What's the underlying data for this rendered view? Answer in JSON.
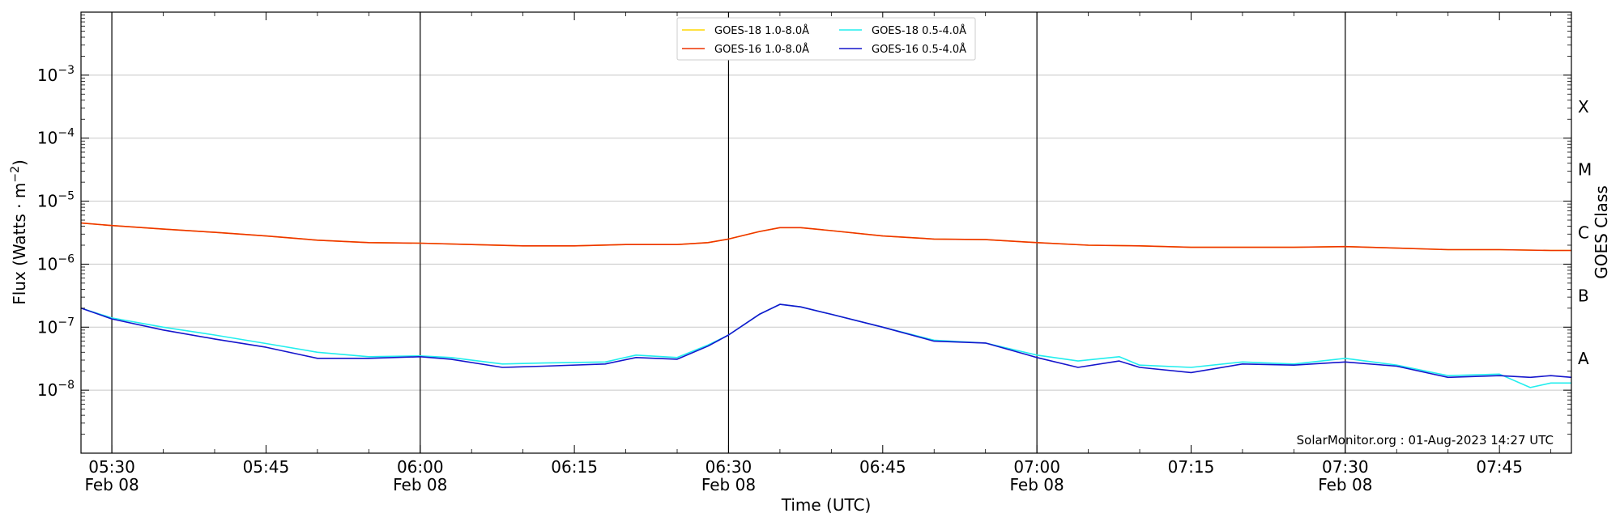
{
  "chart_data": {
    "type": "line",
    "title": "",
    "xlabel": "Time (UTC)",
    "ylabel": "Flux (Watts · m",
    "ylabel_sup": "−2",
    "ylabel_close": ")",
    "right_label": "GOES Class",
    "y_scale": "log",
    "ylim": [
      1e-09,
      0.01
    ],
    "xlim": [
      "05:27",
      "07:52"
    ],
    "grid": "horizontal",
    "legend_position": "top-center",
    "y_ticks": [
      {
        "exp": "-3",
        "value": 0.001
      },
      {
        "exp": "-4",
        "value": 0.0001
      },
      {
        "exp": "-5",
        "value": 1e-05
      },
      {
        "exp": "-6",
        "value": 1e-06
      },
      {
        "exp": "-7",
        "value": 1e-07
      },
      {
        "exp": "-8",
        "value": 1e-08
      }
    ],
    "x_ticks": [
      {
        "time": "05:30",
        "label": "05:30",
        "date": "Feb 08"
      },
      {
        "time": "05:45",
        "label": "05:45",
        "date": ""
      },
      {
        "time": "06:00",
        "label": "06:00",
        "date": "Feb 08"
      },
      {
        "time": "06:15",
        "label": "06:15",
        "date": ""
      },
      {
        "time": "06:30",
        "label": "06:30",
        "date": "Feb 08"
      },
      {
        "time": "06:45",
        "label": "06:45",
        "date": ""
      },
      {
        "time": "07:00",
        "label": "07:00",
        "date": "Feb 08"
      },
      {
        "time": "07:15",
        "label": "07:15",
        "date": ""
      },
      {
        "time": "07:30",
        "label": "07:30",
        "date": "Feb 08"
      },
      {
        "time": "07:45",
        "label": "07:45",
        "date": ""
      }
    ],
    "vlines": [
      "05:30",
      "06:00",
      "06:30",
      "07:00",
      "07:30"
    ],
    "goes_classes": [
      {
        "label": "X",
        "value": 0.000316
      },
      {
        "label": "M",
        "value": 3.16e-05
      },
      {
        "label": "C",
        "value": 3.16e-06
      },
      {
        "label": "B",
        "value": 3.16e-07
      },
      {
        "label": "A",
        "value": 3.16e-08
      }
    ],
    "series": [
      {
        "name": "GOES-18 1.0-8.0Å",
        "color": "#ffd700",
        "x": [
          "05:27",
          "05:30",
          "05:35",
          "05:40",
          "05:45",
          "05:50",
          "05:55",
          "06:00",
          "06:05",
          "06:10",
          "06:15",
          "06:20",
          "06:25",
          "06:28",
          "06:30",
          "06:33",
          "06:35",
          "06:37",
          "06:40",
          "06:45",
          "06:50",
          "06:55",
          "07:00",
          "07:05",
          "07:10",
          "07:15",
          "07:20",
          "07:25",
          "07:30",
          "07:35",
          "07:40",
          "07:45",
          "07:50",
          "07:52"
        ],
        "y": [
          4.5e-06,
          4.1e-06,
          3.6e-06,
          3.2e-06,
          2.8e-06,
          2.4e-06,
          2.2e-06,
          2.15e-06,
          2.05e-06,
          1.95e-06,
          1.95e-06,
          2.05e-06,
          2.05e-06,
          2.2e-06,
          2.5e-06,
          3.3e-06,
          3.8e-06,
          3.8e-06,
          3.4e-06,
          2.8e-06,
          2.5e-06,
          2.45e-06,
          2.2e-06,
          2e-06,
          1.95e-06,
          1.85e-06,
          1.85e-06,
          1.85e-06,
          1.9e-06,
          1.8e-06,
          1.7e-06,
          1.7e-06,
          1.65e-06,
          1.65e-06
        ]
      },
      {
        "name": "GOES-16 1.0-8.0Å",
        "color": "#ee3300",
        "x": [
          "05:27",
          "05:30",
          "05:35",
          "05:40",
          "05:45",
          "05:50",
          "05:55",
          "06:00",
          "06:05",
          "06:10",
          "06:15",
          "06:20",
          "06:25",
          "06:28",
          "06:30",
          "06:33",
          "06:35",
          "06:37",
          "06:40",
          "06:45",
          "06:50",
          "06:55",
          "07:00",
          "07:05",
          "07:10",
          "07:15",
          "07:20",
          "07:25",
          "07:30",
          "07:35",
          "07:40",
          "07:45",
          "07:50",
          "07:52"
        ],
        "y": [
          4.5e-06,
          4.1e-06,
          3.6e-06,
          3.2e-06,
          2.8e-06,
          2.4e-06,
          2.2e-06,
          2.15e-06,
          2.05e-06,
          1.95e-06,
          1.95e-06,
          2.05e-06,
          2.05e-06,
          2.2e-06,
          2.5e-06,
          3.3e-06,
          3.8e-06,
          3.8e-06,
          3.4e-06,
          2.8e-06,
          2.5e-06,
          2.45e-06,
          2.2e-06,
          2e-06,
          1.95e-06,
          1.85e-06,
          1.85e-06,
          1.85e-06,
          1.9e-06,
          1.8e-06,
          1.7e-06,
          1.7e-06,
          1.65e-06,
          1.65e-06
        ]
      },
      {
        "name": "GOES-18 0.5-4.0Å",
        "color": "#22eeee",
        "x": [
          "05:27",
          "05:30",
          "05:35",
          "05:40",
          "05:45",
          "05:50",
          "05:55",
          "06:00",
          "06:03",
          "06:08",
          "06:12",
          "06:18",
          "06:21",
          "06:25",
          "06:28",
          "06:30",
          "06:33",
          "06:35",
          "06:37",
          "06:40",
          "06:45",
          "06:50",
          "06:55",
          "07:00",
          "07:04",
          "07:08",
          "07:10",
          "07:15",
          "07:20",
          "07:25",
          "07:30",
          "07:35",
          "07:40",
          "07:45",
          "07:48",
          "07:50",
          "07:52"
        ],
        "y": [
          2e-07,
          1.4e-07,
          1e-07,
          7.5e-08,
          5.5e-08,
          4e-08,
          3.4e-08,
          3.5e-08,
          3.3e-08,
          2.6e-08,
          2.7e-08,
          2.8e-08,
          3.6e-08,
          3.3e-08,
          5.2e-08,
          7.5e-08,
          1.6e-07,
          2.3e-07,
          2.1e-07,
          1.6e-07,
          1e-07,
          6.2e-08,
          5.6e-08,
          3.6e-08,
          2.9e-08,
          3.4e-08,
          2.5e-08,
          2.3e-08,
          2.8e-08,
          2.6e-08,
          3.2e-08,
          2.5e-08,
          1.7e-08,
          1.8e-08,
          1.1e-08,
          1.3e-08,
          1.3e-08
        ]
      },
      {
        "name": "GOES-16 0.5-4.0Å",
        "color": "#1515cc",
        "x": [
          "05:27",
          "05:30",
          "05:35",
          "05:40",
          "05:45",
          "05:50",
          "05:55",
          "06:00",
          "06:03",
          "06:08",
          "06:12",
          "06:18",
          "06:21",
          "06:25",
          "06:28",
          "06:30",
          "06:33",
          "06:35",
          "06:37",
          "06:40",
          "06:45",
          "06:50",
          "06:55",
          "07:00",
          "07:04",
          "07:08",
          "07:10",
          "07:15",
          "07:20",
          "07:25",
          "07:30",
          "07:35",
          "07:40",
          "07:45",
          "07:48",
          "07:50",
          "07:52"
        ],
        "y": [
          2e-07,
          1.35e-07,
          9e-08,
          6.5e-08,
          4.8e-08,
          3.2e-08,
          3.2e-08,
          3.4e-08,
          3.1e-08,
          2.3e-08,
          2.4e-08,
          2.6e-08,
          3.3e-08,
          3.1e-08,
          5e-08,
          7.5e-08,
          1.6e-07,
          2.3e-07,
          2.1e-07,
          1.6e-07,
          1e-07,
          6e-08,
          5.6e-08,
          3.3e-08,
          2.3e-08,
          2.9e-08,
          2.3e-08,
          1.9e-08,
          2.6e-08,
          2.5e-08,
          2.8e-08,
          2.4e-08,
          1.6e-08,
          1.7e-08,
          1.6e-08,
          1.7e-08,
          1.6e-08
        ]
      }
    ],
    "credit": "SolarMonitor.org : 01-Aug-2023 14:27 UTC"
  }
}
